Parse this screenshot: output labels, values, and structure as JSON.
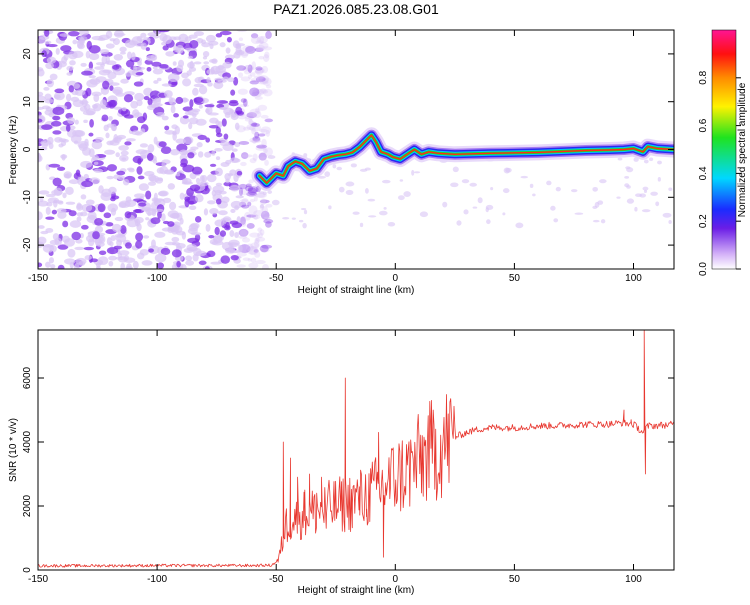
{
  "title": "PAZ1.2026.085.23.08.G01",
  "colors": {
    "snr_line": "#e8372f",
    "axis": "#000000",
    "scatter_light": "#d9c4f5",
    "scatter_dark": "#7d2ee6"
  },
  "chart_data": [
    {
      "type": "heatmap",
      "name": "spectrogram",
      "xlabel": "Height of straight line (km)",
      "ylabel": "Frequency (Hz)",
      "xlim": [
        -150,
        117
      ],
      "ylim": [
        -25,
        25
      ],
      "x_ticks": [
        -150,
        -100,
        -50,
        0,
        50,
        100
      ],
      "y_ticks": [
        -20,
        -10,
        0,
        10,
        20
      ],
      "ridge": [
        [
          -57,
          -5.5
        ],
        [
          -54,
          -7.0
        ],
        [
          -50,
          -5.0
        ],
        [
          -47,
          -5.5
        ],
        [
          -45,
          -3.5
        ],
        [
          -42,
          -2.5
        ],
        [
          -39,
          -3.0
        ],
        [
          -36,
          -4.5
        ],
        [
          -33,
          -4.0
        ],
        [
          -30,
          -2.0
        ],
        [
          -27,
          -1.5
        ],
        [
          -24,
          -1.2
        ],
        [
          -21,
          -1.0
        ],
        [
          -18,
          -0.6
        ],
        [
          -15,
          0.5
        ],
        [
          -12,
          2.0
        ],
        [
          -10,
          3.0
        ],
        [
          -8,
          1.5
        ],
        [
          -6,
          -0.5
        ],
        [
          -3,
          -1.0
        ],
        [
          -1,
          -1.6
        ],
        [
          2,
          -2.0
        ],
        [
          5,
          -1.0
        ],
        [
          8,
          0.0
        ],
        [
          11,
          -1.0
        ],
        [
          14,
          -0.5
        ],
        [
          18,
          -0.8
        ],
        [
          25,
          -1.0
        ],
        [
          40,
          -0.8
        ],
        [
          60,
          -0.6
        ],
        [
          80,
          -0.2
        ],
        [
          90,
          -0.1
        ],
        [
          96,
          0.0
        ],
        [
          100,
          0.2
        ],
        [
          104,
          -0.5
        ],
        [
          106,
          0.6
        ],
        [
          110,
          0.2
        ],
        [
          117,
          0.0
        ]
      ],
      "noise_region_km": [
        -150,
        -57
      ]
    },
    {
      "type": "line",
      "name": "snr",
      "xlabel": "Height of straight line (km)",
      "ylabel": "SNR (10 * v/v)",
      "xlim": [
        -150,
        117
      ],
      "ylim": [
        0,
        7500
      ],
      "x_ticks": [
        -150,
        -100,
        -50,
        0,
        50,
        100
      ],
      "y_ticks": [
        0,
        2000,
        4000,
        6000
      ],
      "envelope": [
        [
          -150,
          130
        ],
        [
          -100,
          140
        ],
        [
          -60,
          140
        ],
        [
          -52,
          150
        ],
        [
          -49,
          300
        ],
        [
          -46,
          1400
        ],
        [
          -43,
          1600
        ],
        [
          -40,
          1700
        ],
        [
          -35,
          1800
        ],
        [
          -30,
          1900
        ],
        [
          -25,
          2000
        ],
        [
          -20,
          2100
        ],
        [
          -15,
          2200
        ],
        [
          -10,
          2400
        ],
        [
          -5,
          2600
        ],
        [
          0,
          2900
        ],
        [
          5,
          3100
        ],
        [
          10,
          3400
        ],
        [
          15,
          3700
        ],
        [
          20,
          3950
        ],
        [
          25,
          4150
        ],
        [
          30,
          4300
        ],
        [
          35,
          4400
        ],
        [
          40,
          4450
        ],
        [
          50,
          4450
        ],
        [
          60,
          4500
        ],
        [
          70,
          4520
        ],
        [
          80,
          4550
        ],
        [
          90,
          4560
        ],
        [
          95,
          4600
        ],
        [
          100,
          4550
        ],
        [
          104,
          4300
        ],
        [
          106,
          4500
        ],
        [
          117,
          4550
        ]
      ],
      "spikes": [
        [
          -47,
          4000
        ],
        [
          -44,
          3500
        ],
        [
          -41,
          2900
        ],
        [
          -38,
          2500
        ],
        [
          -36,
          3000
        ],
        [
          -33,
          2400
        ],
        [
          -31,
          2900
        ],
        [
          -29,
          1300
        ],
        [
          -26,
          2200
        ],
        [
          -24,
          1800
        ],
        [
          -21,
          6000
        ],
        [
          -18,
          2100
        ],
        [
          -15,
          2600
        ],
        [
          -12,
          1900
        ],
        [
          -7,
          4300
        ],
        [
          -5,
          400
        ],
        [
          -2,
          2600
        ],
        [
          8,
          3200
        ],
        [
          15,
          3800
        ],
        [
          96,
          5000
        ],
        [
          99,
          4700
        ],
        [
          104.5,
          7500
        ],
        [
          105,
          3000
        ]
      ]
    }
  ]
}
